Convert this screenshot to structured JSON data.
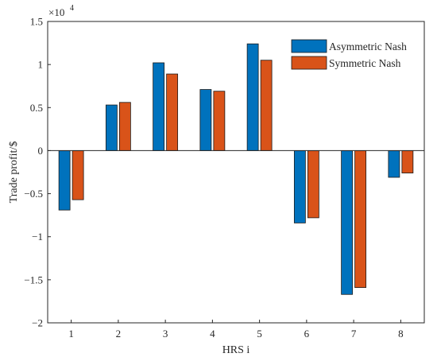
{
  "chart_data": {
    "type": "bar",
    "categories": [
      "1",
      "2",
      "3",
      "4",
      "5",
      "6",
      "7",
      "8"
    ],
    "series": [
      {
        "name": "Asymmetric Nash",
        "color": "#0072BD",
        "values": [
          -6900,
          5300,
          10200,
          7100,
          12400,
          -8400,
          -16700,
          -3100
        ]
      },
      {
        "name": "Symmetric Nash",
        "color": "#D95319",
        "values": [
          -5700,
          5600,
          8900,
          6900,
          10500,
          -7800,
          -15900,
          -2600
        ]
      }
    ],
    "xlabel": "HRS i",
    "ylabel": "Trade profit/$",
    "ylim": [
      -20000,
      15000
    ],
    "y_ticks": [
      -20000,
      -15000,
      -10000,
      -5000,
      0,
      5000,
      10000,
      15000
    ],
    "y_tick_labels": [
      "−2",
      "−1.5",
      "−1",
      "−0.5",
      "0",
      "0.5",
      "1",
      "1.5"
    ],
    "y_multiplier": {
      "base": "×10",
      "exponent": "4"
    },
    "grid": false,
    "legend_position": "top-right"
  }
}
